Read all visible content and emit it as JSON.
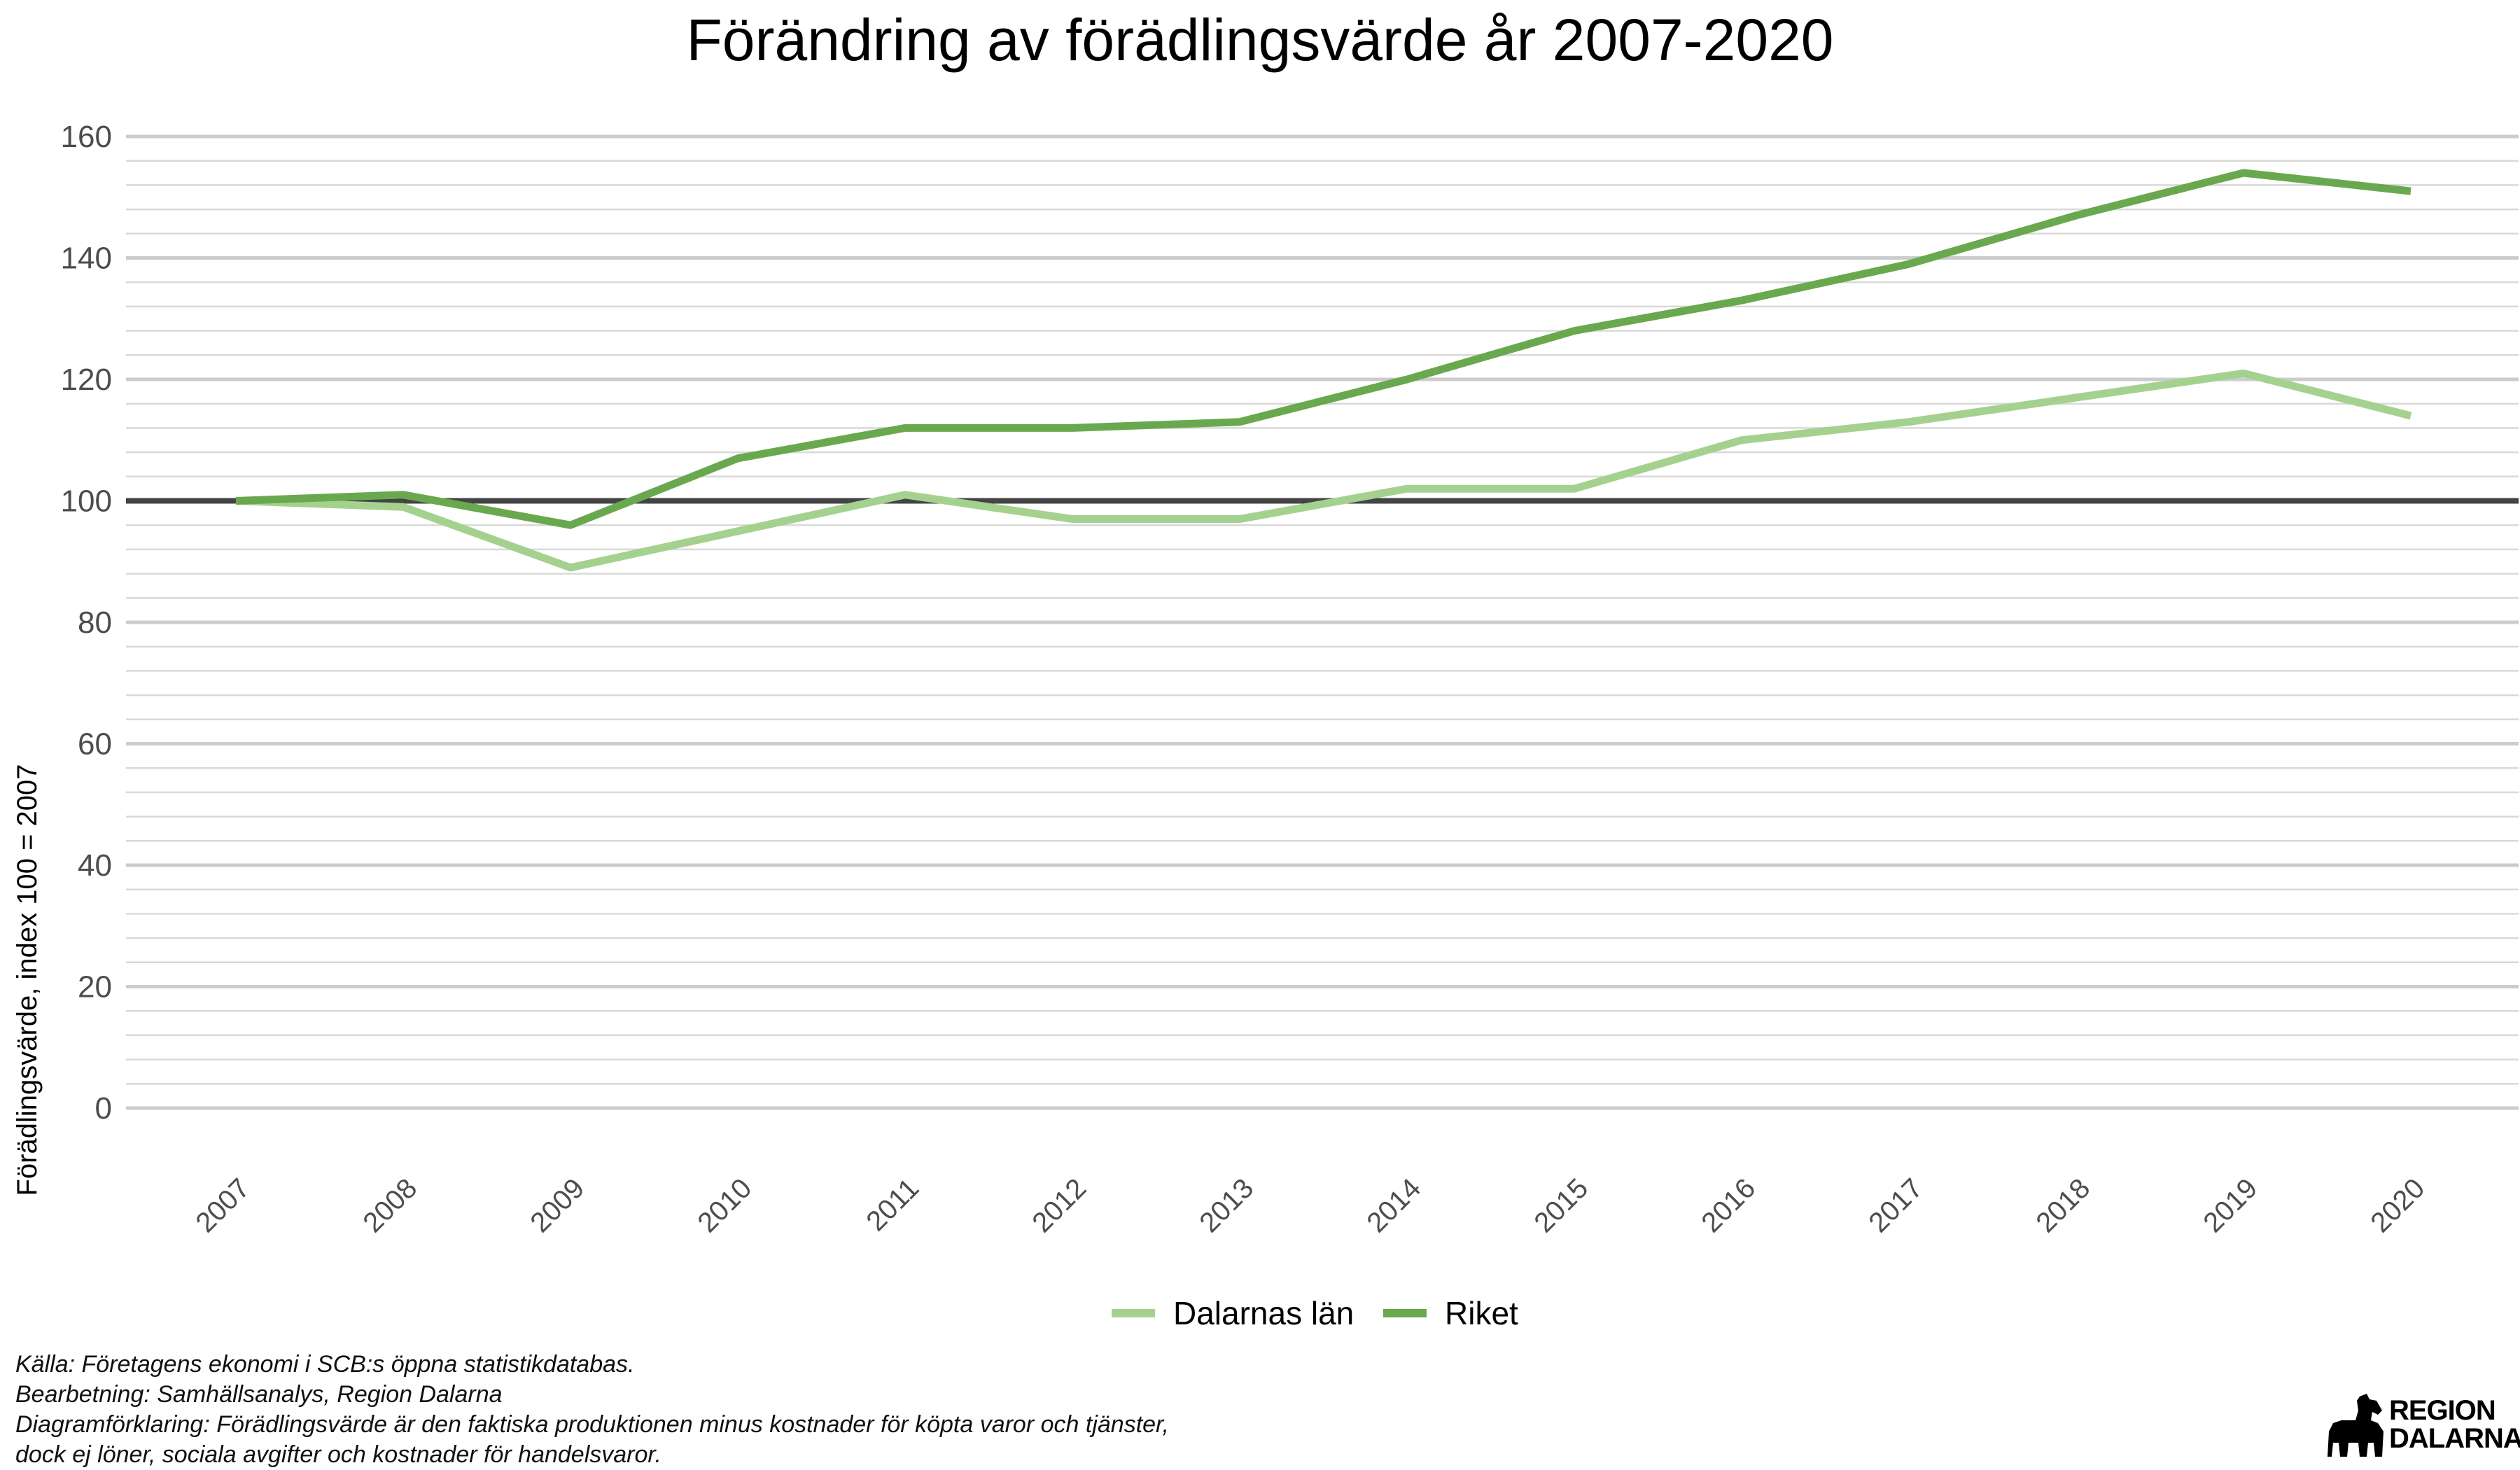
{
  "chart_data": {
    "type": "line",
    "title": "Förändring av förädlingsvärde år 2007-2020",
    "ylabel": "Förädlingsvärde, index 100 = 2007",
    "xlabel": "",
    "categories": [
      "2007",
      "2008",
      "2009",
      "2010",
      "2011",
      "2012",
      "2013",
      "2014",
      "2015",
      "2016",
      "2017",
      "2018",
      "2019",
      "2020"
    ],
    "ylim": [
      0,
      160
    ],
    "yticks": [
      0,
      20,
      40,
      60,
      80,
      100,
      120,
      140,
      160
    ],
    "reference_line": 100,
    "grid": true,
    "legend_position": "bottom",
    "series": [
      {
        "name": "Dalarnas län",
        "color": "#a5d18f",
        "values": [
          100,
          99,
          89,
          95,
          101,
          97,
          97,
          102,
          102,
          110,
          113,
          117,
          121,
          114
        ]
      },
      {
        "name": "Riket",
        "color": "#6aa84f",
        "values": [
          100,
          101,
          96,
          107,
          112,
          112,
          113,
          120,
          128,
          133,
          139,
          147,
          154,
          151
        ]
      }
    ]
  },
  "caption": {
    "line1": "Källa: Företagens ekonomi i SCB:s öppna statistikdatabas.",
    "line2": "Bearbetning: Samhällsanalys, Region Dalarna",
    "line3": "Diagramförklaring: Förädlingsvärde är den faktiska produktionen minus kostnader för köpta varor och tjänster,",
    "line4": "dock ej löner, sociala avgifter och kostnader för handelsvaror."
  },
  "logo": {
    "line1": "REGION",
    "line2": "DALARNA"
  },
  "colors": {
    "reference_line": "#444444",
    "major_grid": "#cccccc",
    "minor_grid": "#d9d9d9",
    "axis_text": "#4d4d4d"
  }
}
